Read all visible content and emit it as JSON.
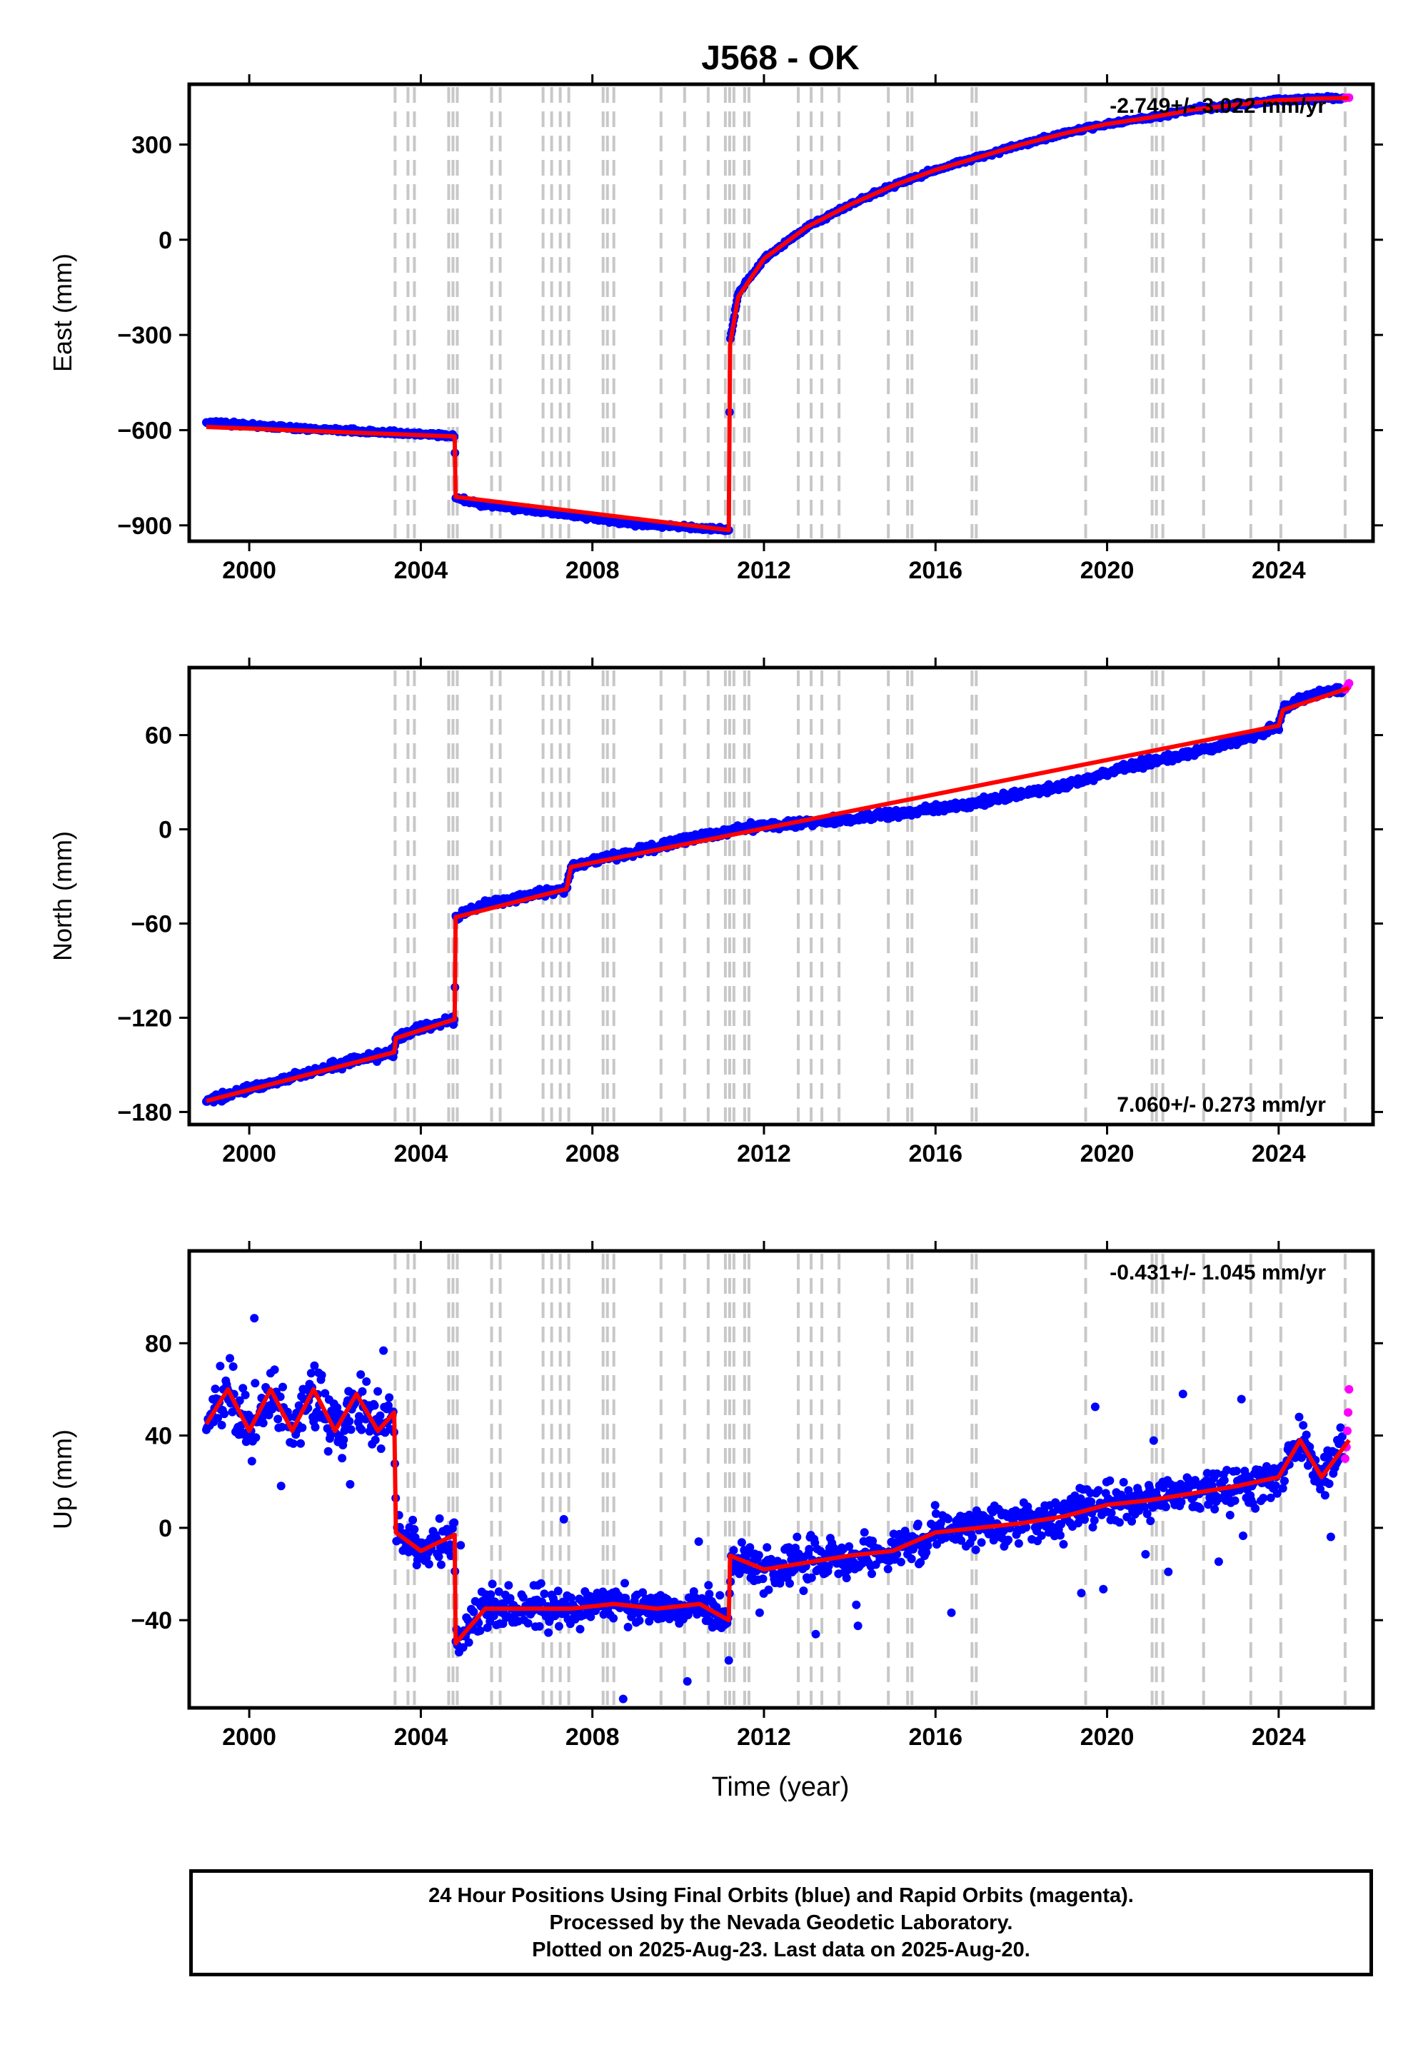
{
  "title": "J568 - OK",
  "colors": {
    "final": "#0000ff",
    "rapid": "#ff00ff",
    "model": "#ff0000",
    "event_lines": "#c8c8c8"
  },
  "xlabel": "Time (year)",
  "footer": {
    "line1": "24 Hour Positions Using Final Orbits (blue) and Rapid Orbits (magenta).",
    "line2": "Processed by the Nevada Geodetic Laboratory.",
    "line3": "Plotted on 2025-Aug-23. Last data on 2025-Aug-20."
  },
  "chart_data": [
    {
      "type": "scatter",
      "ylabel": "East (mm)",
      "rate": "-2.749+/- 3.022 mm/yr",
      "xlim": [
        1998.6,
        2026.2
      ],
      "ylim": [
        -950,
        490
      ],
      "xticks": [
        2000,
        2004,
        2008,
        2012,
        2016,
        2020,
        2024
      ],
      "yticks": [
        -900,
        -600,
        -300,
        0,
        300
      ],
      "event_lines": [
        2003.4,
        2003.7,
        2003.85,
        2004.65,
        2004.75,
        2004.85,
        2005.65,
        2005.85,
        2006.85,
        2007.05,
        2007.25,
        2007.45,
        2008.25,
        2008.35,
        2008.5,
        2009.6,
        2010.15,
        2010.7,
        2011.1,
        2011.2,
        2011.3,
        2011.55,
        2011.65,
        2012.8,
        2013.1,
        2013.35,
        2013.75,
        2014.9,
        2015.35,
        2015.45,
        2016.85,
        2016.95,
        2019.5,
        2021.05,
        2021.15,
        2021.3,
        2022.25,
        2023.35,
        2024.05,
        2025.55
      ],
      "series": [
        {
          "name": "Final Orbits",
          "x": [
            1999.0,
            2000.0,
            2001.0,
            2002.0,
            2003.0,
            2004.0,
            2004.79,
            2004.81,
            2005.5,
            2006.5,
            2007.5,
            2008.5,
            2009.5,
            2010.5,
            2011.18,
            2011.21,
            2011.4,
            2012.0,
            2013.0,
            2014.0,
            2015.0,
            2016.0,
            2017.0,
            2018.0,
            2019.0,
            2020.0,
            2021.0,
            2022.0,
            2023.0,
            2024.0,
            2025.0,
            2025.5
          ],
          "y": [
            -575,
            -585,
            -593,
            -600,
            -607,
            -612,
            -620,
            -815,
            -835,
            -850,
            -868,
            -888,
            -900,
            -908,
            -913,
            -320,
            -170,
            -60,
            40,
            110,
            170,
            220,
            260,
            300,
            335,
            365,
            385,
            410,
            425,
            440,
            445,
            447
          ]
        },
        {
          "name": "Rapid Orbits",
          "x": [
            2025.55,
            2025.6,
            2025.64
          ],
          "y": [
            447,
            448,
            448
          ]
        },
        {
          "name": "Model",
          "x": [
            1999.0,
            2004.79,
            2004.81,
            2011.18,
            2011.21,
            2011.4,
            2012.0,
            2013.0,
            2014.0,
            2015.0,
            2016.0,
            2017.0,
            2018.0,
            2019.0,
            2020.0,
            2021.0,
            2022.0,
            2023.0,
            2024.0,
            2025.0,
            2025.64
          ],
          "y": [
            -590,
            -620,
            -810,
            -915,
            -330,
            -180,
            -60,
            40,
            110,
            170,
            220,
            260,
            300,
            335,
            365,
            385,
            410,
            425,
            440,
            445,
            447
          ]
        }
      ]
    },
    {
      "type": "scatter",
      "ylabel": "North (mm)",
      "rate": "7.060+/- 0.273 mm/yr",
      "xlim": [
        1998.6,
        2026.2
      ],
      "ylim": [
        -188,
        103
      ],
      "xticks": [
        2000,
        2004,
        2008,
        2012,
        2016,
        2020,
        2024
      ],
      "yticks": [
        -180,
        -120,
        -60,
        0,
        60
      ],
      "event_lines": [
        2003.4,
        2003.7,
        2003.85,
        2004.65,
        2004.75,
        2004.85,
        2005.65,
        2005.85,
        2006.85,
        2007.05,
        2007.25,
        2007.45,
        2008.25,
        2008.35,
        2008.5,
        2009.6,
        2010.15,
        2010.7,
        2011.1,
        2011.2,
        2011.3,
        2011.55,
        2011.65,
        2012.8,
        2013.1,
        2013.35,
        2013.75,
        2014.9,
        2015.35,
        2015.45,
        2016.85,
        2016.95,
        2019.5,
        2021.05,
        2021.15,
        2021.3,
        2022.25,
        2023.35,
        2024.05,
        2025.55
      ],
      "series": [
        {
          "name": "Final Orbits",
          "x": [
            1999.0,
            2000.0,
            2001.0,
            2002.0,
            2003.0,
            2003.38,
            2003.42,
            2004.0,
            2004.79,
            2004.81,
            2005.5,
            2006.5,
            2007.4,
            2007.5,
            2008.5,
            2009.5,
            2010.5,
            2011.5,
            2012.5,
            2013.5,
            2014.5,
            2015.5,
            2016.5,
            2017.5,
            2018.5,
            2019.5,
            2020.5,
            2021.5,
            2022.5,
            2023.5,
            2024.0,
            2024.1,
            2024.6,
            2025.0,
            2025.5
          ],
          "y": [
            -173,
            -165,
            -158,
            -150,
            -144,
            -142,
            -133,
            -127,
            -121,
            -56,
            -48,
            -42,
            -38,
            -24,
            -17,
            -11,
            -5,
            1,
            3,
            5,
            8,
            11,
            15,
            20,
            25,
            31,
            40,
            46,
            52,
            60,
            66,
            76,
            84,
            87,
            89
          ]
        },
        {
          "name": "Rapid Orbits",
          "x": [
            2025.55,
            2025.6,
            2025.64
          ],
          "y": [
            89,
            91,
            93
          ]
        },
        {
          "name": "Model",
          "x": [
            1999.0,
            2003.38,
            2003.42,
            2004.79,
            2004.81,
            2007.4,
            2007.5,
            2024.0,
            2024.1,
            2025.64
          ],
          "y": [
            -173,
            -142,
            -133,
            -121,
            -56,
            -38,
            -24,
            66,
            76,
            90
          ]
        }
      ]
    },
    {
      "type": "scatter",
      "ylabel": "Up (mm)",
      "rate": "-0.431+/- 1.045 mm/yr",
      "xlim": [
        1998.6,
        2026.2
      ],
      "ylim": [
        -78,
        120
      ],
      "xticks": [
        2000,
        2004,
        2008,
        2012,
        2016,
        2020,
        2024
      ],
      "yticks": [
        -40,
        0,
        40,
        80
      ],
      "event_lines": [
        2003.4,
        2003.7,
        2003.85,
        2004.65,
        2004.75,
        2004.85,
        2005.65,
        2005.85,
        2006.85,
        2007.05,
        2007.25,
        2007.45,
        2008.25,
        2008.35,
        2008.5,
        2009.6,
        2010.15,
        2010.7,
        2011.1,
        2011.2,
        2011.3,
        2011.55,
        2011.65,
        2012.8,
        2013.1,
        2013.35,
        2013.75,
        2014.9,
        2015.35,
        2015.45,
        2016.85,
        2016.95,
        2019.5,
        2021.05,
        2021.15,
        2021.3,
        2022.25,
        2023.35,
        2024.05,
        2025.55
      ],
      "series": [
        {
          "name": "Final Orbits",
          "x": [
            1999.0,
            1999.5,
            2000.0,
            2000.5,
            2001.0,
            2001.5,
            2002.0,
            2002.5,
            2003.0,
            2003.38,
            2003.42,
            2004.0,
            2004.79,
            2004.81,
            2005.5,
            2006.5,
            2007.5,
            2008.5,
            2009.5,
            2010.5,
            2011.18,
            2011.21,
            2012.0,
            2013.0,
            2014.0,
            2015.0,
            2016.0,
            2017.0,
            2018.0,
            2019.0,
            2020.0,
            2021.0,
            2022.0,
            2023.0,
            2024.0,
            2024.5,
            2025.0,
            2025.5
          ],
          "y": [
            45,
            60,
            42,
            60,
            42,
            60,
            42,
            58,
            42,
            50,
            -2,
            -10,
            -3,
            -50,
            -35,
            -35,
            -35,
            -33,
            -35,
            -33,
            -40,
            -12,
            -18,
            -15,
            -12,
            -10,
            -2,
            0,
            2,
            5,
            10,
            12,
            15,
            18,
            22,
            38,
            22,
            35
          ]
        },
        {
          "name": "Rapid Orbits",
          "x": [
            2025.55,
            2025.58,
            2025.6,
            2025.62,
            2025.64
          ],
          "y": [
            30,
            35,
            42,
            50,
            60
          ]
        },
        {
          "name": "Model",
          "x": [
            1999.0,
            1999.5,
            2000.0,
            2000.5,
            2001.0,
            2001.5,
            2002.0,
            2002.5,
            2003.0,
            2003.38,
            2003.42,
            2004.0,
            2004.79,
            2004.81,
            2005.5,
            2006.5,
            2007.5,
            2008.5,
            2009.5,
            2010.5,
            2011.18,
            2011.21,
            2012.0,
            2013.0,
            2014.0,
            2015.0,
            2016.0,
            2017.0,
            2018.0,
            2019.0,
            2020.0,
            2021.0,
            2022.0,
            2023.0,
            2024.0,
            2024.5,
            2025.0,
            2025.64
          ],
          "y": [
            45,
            60,
            42,
            60,
            42,
            60,
            42,
            58,
            42,
            50,
            -2,
            -10,
            -3,
            -50,
            -35,
            -35,
            -35,
            -33,
            -35,
            -33,
            -40,
            -12,
            -18,
            -15,
            -12,
            -10,
            -2,
            0,
            2,
            5,
            10,
            12,
            15,
            18,
            22,
            38,
            22,
            38
          ]
        }
      ]
    }
  ]
}
